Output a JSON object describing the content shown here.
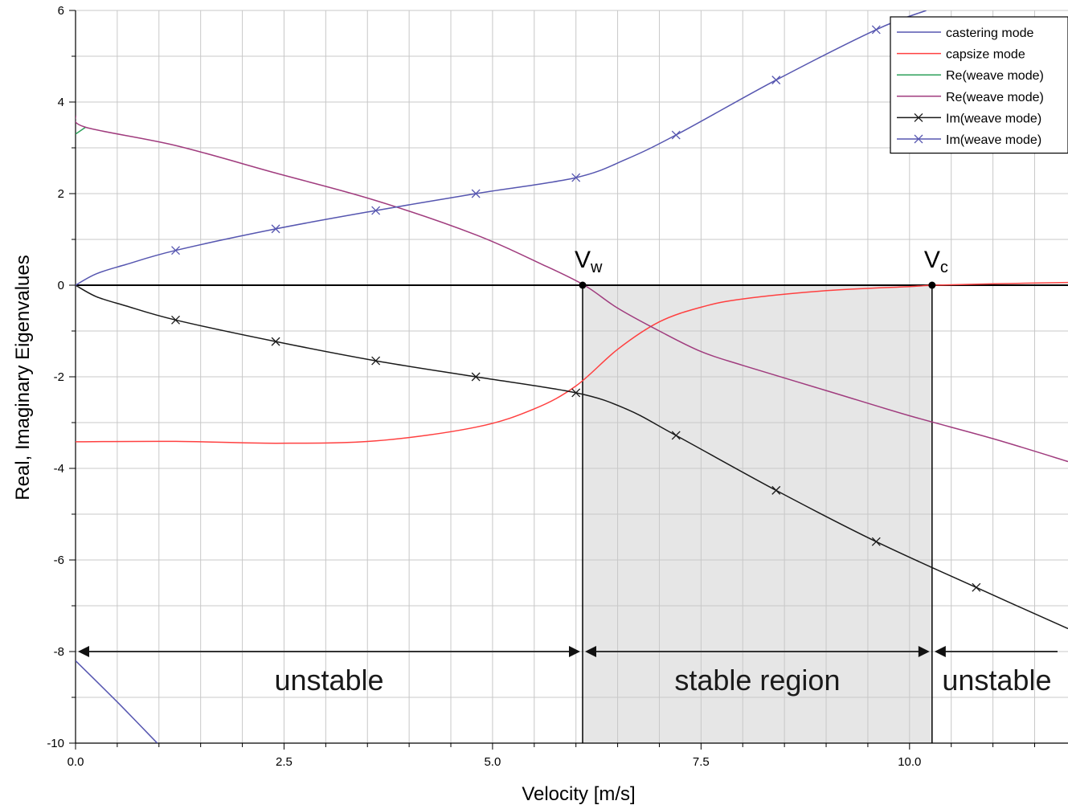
{
  "chart_data": {
    "type": "line",
    "xlabel": "Velocity [m/s]",
    "ylabel": "Real, Imaginary Eigenvalues",
    "xlim": [
      0,
      11.9
    ],
    "ylim": [
      -10,
      6
    ],
    "xticks": [
      0,
      2.5,
      5,
      7.5,
      10
    ],
    "xtick_labels": [
      "0.0",
      "2.5",
      "5.0",
      "7.5",
      "10.0"
    ],
    "yticks": [
      -10,
      -8,
      -6,
      -4,
      -2,
      0,
      2,
      4,
      6
    ],
    "ytick_labels": [
      "-10",
      "-8",
      "-6",
      "-4",
      "-2",
      "0",
      "2",
      "4",
      "6"
    ],
    "grid": true,
    "legend_position": "top-right",
    "series": [
      {
        "name": "castering mode",
        "color": "#5656b0",
        "marker": "none",
        "x": [
          0,
          0.5,
          0.98
        ],
        "y": [
          -8.2,
          -9.1,
          -10
        ]
      },
      {
        "name": "capsize mode",
        "color": "#ff4040",
        "marker": "none",
        "x": [
          0,
          1.2,
          2.4,
          3.6,
          4.8,
          5.5,
          6.0,
          6.5,
          7.0,
          7.5,
          8.0,
          9.0,
          10.0,
          10.3,
          11.0,
          11.9
        ],
        "y": [
          -3.42,
          -3.41,
          -3.45,
          -3.4,
          -3.1,
          -2.7,
          -2.2,
          -1.4,
          -0.8,
          -0.48,
          -0.3,
          -0.12,
          -0.03,
          0,
          0.03,
          0.06
        ]
      },
      {
        "name": "Re(weave mode)",
        "color": "#2ca05a",
        "marker": "none",
        "x": [
          0,
          0.12
        ],
        "y": [
          3.3,
          3.45
        ]
      },
      {
        "name": "Re(weave mode)",
        "color": "#a03c7e",
        "marker": "none",
        "x": [
          0,
          0.12,
          1.2,
          2.4,
          3.6,
          4.8,
          5.6,
          6.1,
          6.5,
          7.0,
          7.5,
          8.0,
          9.0,
          10.0,
          11.0,
          11.9
        ],
        "y": [
          3.7,
          3.45,
          3.05,
          2.45,
          1.85,
          1.1,
          0.45,
          0.0,
          -0.5,
          -1.0,
          -1.45,
          -1.75,
          -2.3,
          -2.85,
          -3.35,
          -3.85
        ]
      },
      {
        "name": "Im(weave mode)",
        "color": "#1a1a1a",
        "marker": "x",
        "x": [
          0,
          0.25,
          0.6,
          1.2,
          2.4,
          3.6,
          4.8,
          6.0,
          6.6,
          7.2,
          8.4,
          9.6,
          10.8,
          11.9
        ],
        "y": [
          0,
          -0.25,
          -0.45,
          -0.76,
          -1.23,
          -1.65,
          -2.0,
          -2.35,
          -2.7,
          -3.28,
          -4.48,
          -5.6,
          -6.6,
          -7.5
        ],
        "marker_x": [
          1.2,
          2.4,
          3.6,
          4.8,
          6.0,
          7.2,
          8.4,
          9.6,
          10.8
        ]
      },
      {
        "name": "Im(weave mode)",
        "color": "#5656b0",
        "marker": "x",
        "x": [
          0,
          0.25,
          0.6,
          1.2,
          2.4,
          3.6,
          4.8,
          6.0,
          6.6,
          7.2,
          8.4,
          9.6,
          10.2
        ],
        "y": [
          0,
          0.25,
          0.45,
          0.76,
          1.23,
          1.63,
          2.0,
          2.35,
          2.75,
          3.28,
          4.48,
          5.58,
          6.0
        ],
        "marker_x": [
          1.2,
          2.4,
          3.6,
          4.8,
          6.0,
          7.2,
          8.4,
          9.6
        ]
      }
    ],
    "points": [
      {
        "label": "V",
        "subscript": "w",
        "x": 6.08,
        "y": 0
      },
      {
        "label": "V",
        "subscript": "c",
        "x": 10.27,
        "y": 0
      }
    ],
    "shaded_region": {
      "x_from": 6.08,
      "x_to": 10.27,
      "y_from": -10,
      "y_to": 0,
      "color": "#e6e6e6"
    },
    "regions": [
      {
        "label": "unstable",
        "x_from": 0,
        "x_to": 6.08,
        "arrow_y": -8
      },
      {
        "label": "stable region",
        "x_from": 6.08,
        "x_to": 10.27,
        "arrow_y": -8
      },
      {
        "label": "unstable",
        "x_from": 10.27,
        "x_to": 11.9,
        "arrow_y": -8
      }
    ]
  }
}
